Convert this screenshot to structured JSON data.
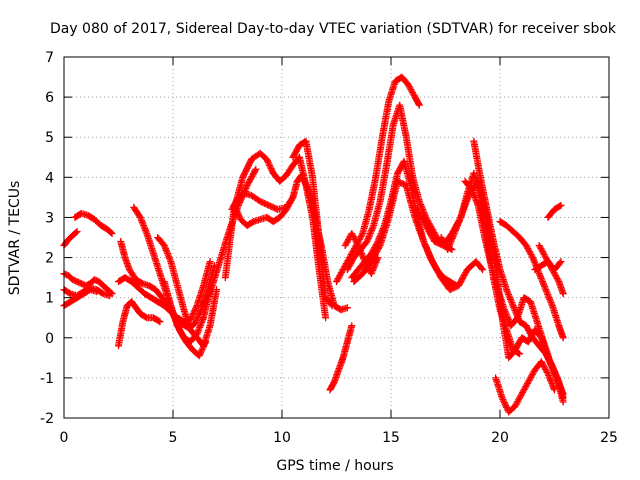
{
  "chart_data": {
    "type": "scatter",
    "title": "Day 080 of 2017, Sidereal Day-to-day VTEC variation (SDTVAR) for receiver sbok",
    "xlabel": "GPS time / hours",
    "ylabel": "SDTVAR / TECUs",
    "xlim": [
      0,
      25
    ],
    "ylim": [
      -2,
      7
    ],
    "xticks": [
      "0",
      "5",
      "10",
      "15",
      "20",
      "25"
    ],
    "yticks": [
      "-2",
      "-1",
      "0",
      "1",
      "2",
      "3",
      "4",
      "5",
      "6",
      "7"
    ],
    "grid": true,
    "marker": "plus",
    "color": "#ff0000",
    "series": [
      {
        "x": [
          0.0,
          0.2,
          0.4,
          0.6
        ],
        "y": [
          2.3,
          2.45,
          2.55,
          2.65
        ]
      },
      {
        "x": [
          0.5,
          0.8,
          1.1,
          1.4,
          1.7,
          2.0,
          2.2
        ],
        "y": [
          3.0,
          3.1,
          3.05,
          2.95,
          2.8,
          2.7,
          2.6
        ]
      },
      {
        "x": [
          0.0,
          0.2,
          0.4,
          0.6,
          0.8,
          1.0,
          1.2,
          1.4,
          1.6,
          1.8,
          2.0,
          2.2
        ],
        "y": [
          1.6,
          1.55,
          1.45,
          1.4,
          1.35,
          1.3,
          1.35,
          1.45,
          1.4,
          1.3,
          1.2,
          1.1
        ]
      },
      {
        "x": [
          0.0,
          0.3,
          0.6,
          0.9,
          1.2,
          1.5,
          1.8,
          2.1
        ],
        "y": [
          1.2,
          1.1,
          1.05,
          1.15,
          1.25,
          1.2,
          1.1,
          1.05
        ]
      },
      {
        "x": [
          0.0,
          0.3,
          0.6,
          0.9,
          1.2,
          1.5
        ],
        "y": [
          0.8,
          0.9,
          1.0,
          1.1,
          1.2,
          1.15
        ]
      },
      {
        "x": [
          2.6,
          2.8,
          3.0,
          3.3,
          3.6,
          3.9,
          4.2,
          4.5,
          4.8,
          5.1,
          5.4,
          5.7,
          6.0,
          6.3,
          6.6,
          6.9
        ],
        "y": [
          2.4,
          2.0,
          1.7,
          1.45,
          1.35,
          1.3,
          1.2,
          1.0,
          0.75,
          0.5,
          0.35,
          0.25,
          0.35,
          0.7,
          1.2,
          1.8
        ]
      },
      {
        "x": [
          2.5,
          2.8,
          3.1,
          3.4,
          3.7,
          4.0,
          4.3,
          4.6,
          4.9,
          5.2,
          5.5,
          5.8,
          6.1,
          6.4,
          6.7
        ],
        "y": [
          1.4,
          1.5,
          1.4,
          1.25,
          1.1,
          1.0,
          0.9,
          0.8,
          0.65,
          0.5,
          0.4,
          0.45,
          0.8,
          1.3,
          1.9
        ]
      },
      {
        "x": [
          2.5,
          2.7,
          2.9,
          3.1,
          3.3,
          3.5,
          3.8,
          4.1,
          4.4
        ],
        "y": [
          -0.2,
          0.4,
          0.8,
          0.9,
          0.75,
          0.6,
          0.5,
          0.5,
          0.4
        ]
      },
      {
        "x": [
          3.2,
          3.5,
          3.8,
          4.1,
          4.4,
          4.7,
          5.0,
          5.3,
          5.6,
          5.9,
          6.2,
          6.5
        ],
        "y": [
          3.25,
          3.0,
          2.6,
          2.1,
          1.6,
          1.1,
          0.6,
          0.2,
          -0.1,
          -0.3,
          -0.45,
          -0.1
        ]
      },
      {
        "x": [
          4.3,
          4.6,
          4.9,
          5.2,
          5.5,
          5.8,
          6.1,
          6.4,
          6.7,
          7.0
        ],
        "y": [
          2.5,
          2.3,
          1.9,
          1.3,
          0.7,
          0.2,
          0.0,
          -0.2,
          0.3,
          1.2
        ]
      },
      {
        "x": [
          4.6,
          4.9,
          5.2,
          5.5,
          5.8,
          6.1,
          6.4,
          6.7
        ],
        "y": [
          1.4,
          0.8,
          0.3,
          0.0,
          -0.1,
          0.1,
          0.5,
          1.2
        ]
      },
      {
        "x": [
          7.4,
          7.8,
          8.2,
          8.6,
          9.0,
          9.3,
          9.6,
          9.9,
          10.2,
          10.5,
          10.8,
          11.1,
          11.4,
          11.7,
          12.0
        ],
        "y": [
          1.5,
          3.2,
          4.0,
          4.45,
          4.6,
          4.45,
          4.1,
          3.9,
          4.05,
          4.3,
          4.5,
          3.8,
          3.0,
          1.7,
          0.5
        ]
      },
      {
        "x": [
          7.7,
          8.0,
          8.3,
          8.6,
          9.0,
          9.4,
          9.8,
          10.2,
          10.5,
          10.7,
          10.9,
          11.2,
          11.5,
          11.8,
          12.1,
          12.4,
          12.7,
          13.0
        ],
        "y": [
          3.2,
          3.5,
          3.6,
          3.55,
          3.4,
          3.3,
          3.2,
          3.25,
          3.5,
          3.9,
          4.05,
          3.7,
          3.1,
          2.3,
          1.4,
          0.8,
          0.7,
          0.75
        ]
      },
      {
        "x": [
          7.8,
          8.1,
          8.4,
          8.7,
          9.0,
          9.3,
          9.6,
          9.9,
          10.2,
          10.5
        ],
        "y": [
          3.3,
          2.95,
          2.8,
          2.9,
          2.95,
          3.0,
          2.9,
          3.0,
          3.2,
          3.5
        ]
      },
      {
        "x": [
          6.4,
          6.8,
          7.2,
          7.6,
          8.0,
          8.4,
          8.8
        ],
        "y": [
          0.8,
          1.3,
          2.0,
          2.7,
          3.3,
          3.8,
          4.2
        ]
      },
      {
        "x": [
          10.5,
          10.8,
          11.1,
          11.4,
          11.7,
          12.0,
          12.3
        ],
        "y": [
          4.5,
          4.8,
          4.9,
          4.0,
          2.5,
          1.0,
          0.8
        ]
      },
      {
        "x": [
          12.2,
          12.4,
          12.6,
          12.8,
          13.0,
          13.2
        ],
        "y": [
          -1.3,
          -1.1,
          -0.8,
          -0.5,
          -0.1,
          0.3
        ]
      },
      {
        "x": [
          12.5,
          12.8,
          13.1,
          13.4,
          13.7,
          14.0,
          14.3,
          14.6,
          14.9,
          15.2,
          15.5,
          15.8,
          16.1,
          16.3
        ],
        "y": [
          1.4,
          1.7,
          2.0,
          2.3,
          2.6,
          3.2,
          4.0,
          5.0,
          5.9,
          6.4,
          6.5,
          6.3,
          6.0,
          5.8
        ]
      },
      {
        "x": [
          13.0,
          13.3,
          13.6,
          13.9,
          14.2,
          14.5,
          14.8,
          15.1,
          15.4,
          15.7,
          16.0,
          16.3,
          16.6,
          16.9,
          17.2,
          17.5,
          17.8
        ],
        "y": [
          1.7,
          2.0,
          2.2,
          2.4,
          2.8,
          3.4,
          4.3,
          5.3,
          5.8,
          5.0,
          4.0,
          3.4,
          3.0,
          2.7,
          2.4,
          2.3,
          2.2
        ]
      },
      {
        "x": [
          13.2,
          13.5,
          13.8,
          14.1,
          14.4,
          14.7,
          15.0,
          15.3,
          15.6,
          15.9,
          16.2,
          16.5,
          16.8,
          17.1,
          17.4,
          17.7,
          18.0
        ],
        "y": [
          1.5,
          1.7,
          1.9,
          2.1,
          2.4,
          2.8,
          3.4,
          4.1,
          4.4,
          3.8,
          3.0,
          2.4,
          2.0,
          1.7,
          1.5,
          1.4,
          1.3
        ]
      },
      {
        "x": [
          13.3,
          13.7,
          14.1,
          14.5,
          14.9,
          15.3,
          15.7,
          16.1,
          16.5,
          16.9,
          17.3,
          17.7,
          18.1,
          18.5,
          18.9,
          19.2
        ],
        "y": [
          1.4,
          1.6,
          1.9,
          2.3,
          3.0,
          3.9,
          3.8,
          3.0,
          2.4,
          1.9,
          1.5,
          1.2,
          1.3,
          1.7,
          1.9,
          1.7
        ]
      },
      {
        "x": [
          16.2,
          16.6,
          17.0,
          17.4,
          17.8,
          18.2,
          18.6,
          19.0,
          19.4,
          19.8,
          20.1,
          20.4,
          20.7,
          21.0,
          21.3,
          21.6,
          21.9,
          22.2,
          22.6,
          22.9
        ],
        "y": [
          3.2,
          2.8,
          2.4,
          2.3,
          2.6,
          3.0,
          3.6,
          3.9,
          3.0,
          1.8,
          0.5,
          -0.5,
          -0.3,
          0.0,
          -0.1,
          0.2,
          0.0,
          -0.5,
          -1.0,
          -1.6
        ]
      },
      {
        "x": [
          17.3,
          17.6,
          17.9,
          18.2,
          18.5,
          18.8,
          19.1,
          19.4,
          19.7,
          20.0,
          20.3,
          20.6,
          20.9
        ],
        "y": [
          2.5,
          2.2,
          2.6,
          3.0,
          3.6,
          4.1,
          3.5,
          2.5,
          1.5,
          0.7,
          0.2,
          -0.3,
          -0.4
        ]
      },
      {
        "x": [
          18.4,
          18.7,
          19.0,
          19.3,
          19.6,
          19.9,
          20.2,
          20.5,
          20.8,
          21.1,
          21.4,
          21.7,
          22.0,
          22.3,
          22.6,
          22.9
        ],
        "y": [
          3.9,
          3.7,
          3.3,
          2.5,
          1.8,
          1.2,
          0.7,
          0.3,
          0.5,
          1.0,
          0.9,
          0.4,
          -0.1,
          -0.6,
          -1.0,
          -1.4
        ]
      },
      {
        "x": [
          18.8,
          19.1,
          19.4,
          19.7,
          20.0,
          20.3,
          20.6,
          20.9,
          21.2,
          21.5,
          21.8,
          22.1,
          22.4,
          22.7,
          22.9
        ],
        "y": [
          4.9,
          4.0,
          3.2,
          2.4,
          1.7,
          1.2,
          0.8,
          0.4,
          0.3,
          0.0,
          -0.2,
          -0.4,
          -0.7,
          -1.1,
          -1.5
        ]
      },
      {
        "x": [
          20.0,
          20.3,
          20.6,
          20.9,
          21.2,
          21.5,
          21.8,
          22.1,
          22.4,
          22.7,
          22.9
        ],
        "y": [
          2.9,
          2.8,
          2.65,
          2.5,
          2.3,
          2.0,
          1.6,
          1.2,
          0.8,
          0.3,
          0.0
        ]
      },
      {
        "x": [
          19.8,
          20.1,
          20.4,
          20.7,
          21.0,
          21.3,
          21.6,
          21.9,
          22.2,
          22.5
        ],
        "y": [
          -1.0,
          -1.5,
          -1.85,
          -1.7,
          -1.4,
          -1.1,
          -0.8,
          -0.6,
          -0.9,
          -1.3
        ]
      },
      {
        "x": [
          21.6,
          21.9,
          22.2,
          22.5,
          22.8
        ],
        "y": [
          1.7,
          1.8,
          1.9,
          1.7,
          1.9
        ]
      },
      {
        "x": [
          22.2,
          22.5,
          22.8
        ],
        "y": [
          3.0,
          3.2,
          3.3
        ]
      },
      {
        "x": [
          21.8,
          22.1,
          22.4,
          22.7,
          22.9
        ],
        "y": [
          2.3,
          2.0,
          1.7,
          1.4,
          1.1
        ]
      },
      {
        "x": [
          12.9,
          13.2,
          13.5,
          13.8,
          14.1,
          14.4
        ],
        "y": [
          2.3,
          2.6,
          2.3,
          1.9,
          1.6,
          2.0
        ]
      }
    ]
  }
}
